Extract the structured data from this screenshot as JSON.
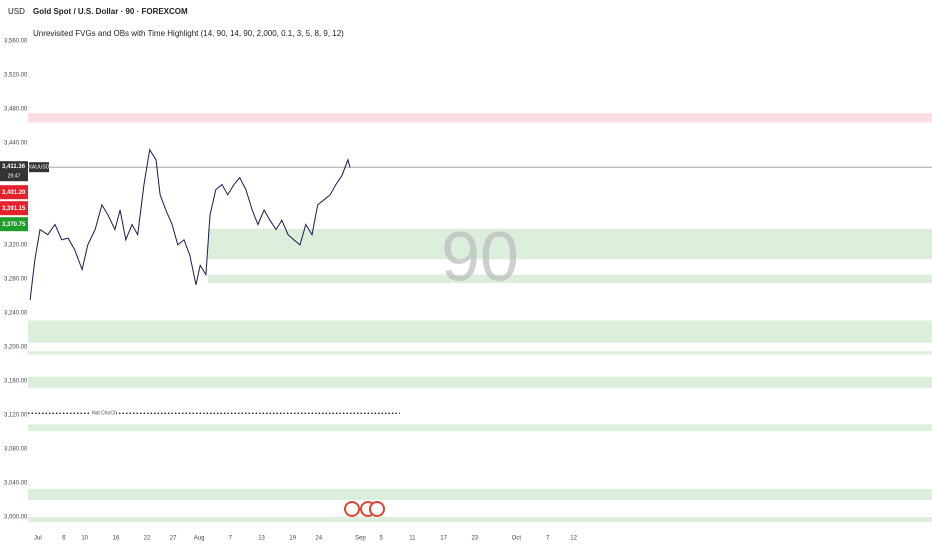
{
  "chart_data": {
    "type": "line",
    "currency": "USD",
    "title": "Gold Spot / U.S. Dollar · 90 · FOREXCOM",
    "subtitle": "Unrevisited FVGs and OBs with Time Highlight (14, 90, 14, 90, 2,000, 0.1, 3, 5, 8, 9, 12)",
    "watermark": "90",
    "x": [
      -1.5,
      -0.6,
      0.4,
      1.9,
      3.3,
      4.6,
      5.8,
      7.1,
      8.5,
      9.6,
      11,
      12.3,
      13.5,
      14.8,
      15.8,
      16.9,
      18.1,
      19.2,
      20.4,
      21.5,
      22.7,
      23.5,
      24.6,
      25.8,
      26.9,
      28.1,
      29.2,
      30.4,
      31.2,
      32.3,
      33.1,
      34.2,
      35.4,
      36.5,
      37.7,
      38.8,
      40,
      41.2,
      42.3,
      43.5,
      44.6,
      45.8,
      46.9,
      48.1,
      49.2,
      50.4,
      51.5,
      52.7,
      53.8,
      55,
      56.2,
      57.3,
      58.5,
      59.6,
      60
    ],
    "series": [
      {
        "name": "XAUUSD",
        "color": "#1a1a4e",
        "values": [
          3255,
          3302,
          3338,
          3332,
          3344,
          3326,
          3328,
          3314,
          3291,
          3320,
          3338,
          3367,
          3355,
          3338,
          3361,
          3326,
          3344,
          3332,
          3391,
          3432,
          3420,
          3379,
          3361,
          3344,
          3320,
          3326,
          3308,
          3273,
          3296,
          3285,
          3355,
          3385,
          3391,
          3379,
          3391,
          3399,
          3385,
          3361,
          3344,
          3361,
          3349,
          3338,
          3349,
          3332,
          3326,
          3320,
          3344,
          3332,
          3367,
          3373,
          3379,
          3391,
          3402,
          3420,
          3411
        ]
      }
    ],
    "xlim": [
      -1.9,
      171.9
    ],
    "ylim": [
      2987,
      3608
    ],
    "xticks": [
      {
        "value": 0,
        "label": "Jul"
      },
      {
        "value": 5,
        "label": "6"
      },
      {
        "value": 9,
        "label": "10"
      },
      {
        "value": 15,
        "label": "16"
      },
      {
        "value": 21,
        "label": "22"
      },
      {
        "value": 26,
        "label": "27"
      },
      {
        "value": 31,
        "label": "Aug"
      },
      {
        "value": 37,
        "label": "7"
      },
      {
        "value": 43,
        "label": "13"
      },
      {
        "value": 49,
        "label": "19"
      },
      {
        "value": 54,
        "label": "24"
      },
      {
        "value": 62,
        "label": "Sep"
      },
      {
        "value": 66,
        "label": "5"
      },
      {
        "value": 72,
        "label": "11"
      },
      {
        "value": 78,
        "label": "17"
      },
      {
        "value": 84,
        "label": "23"
      },
      {
        "value": 92,
        "label": "Oct"
      },
      {
        "value": 98,
        "label": "7"
      },
      {
        "value": 103,
        "label": "12"
      }
    ],
    "yticks": [
      {
        "value": 3560,
        "label": "3,560.00"
      },
      {
        "value": 3520,
        "label": "3,520.00"
      },
      {
        "value": 3480,
        "label": "3,480.00"
      },
      {
        "value": 3440,
        "label": "3,440.00"
      },
      {
        "value": 3320,
        "label": "3,320.00"
      },
      {
        "value": 3280,
        "label": "3,280.00"
      },
      {
        "value": 3240,
        "label": "3,240.00"
      },
      {
        "value": 3200,
        "label": "3,200.00"
      },
      {
        "value": 3160,
        "label": "3,160.00"
      },
      {
        "value": 3120,
        "label": "3,120.00"
      },
      {
        "value": 3080,
        "label": "3,080.00"
      },
      {
        "value": 3040,
        "label": "3,040.00"
      },
      {
        "value": 3000,
        "label": "3,000.00"
      }
    ],
    "zones": [
      {
        "from": 3464,
        "to": 3475,
        "color": "#fcdde2"
      },
      {
        "from": 3303,
        "to": 3339,
        "color": "#dcefdc",
        "start": 32.7
      },
      {
        "from": 3275,
        "to": 3285,
        "color": "#dcefdc",
        "start": 32.7
      },
      {
        "from": 3205,
        "to": 3231,
        "color": "#dcefdc"
      },
      {
        "from": 3191,
        "to": 3195,
        "color": "#dcefdc"
      },
      {
        "from": 3152,
        "to": 3165,
        "color": "#dcefdc"
      },
      {
        "from": 3101,
        "to": 3109,
        "color": "#dcefdc"
      },
      {
        "from": 3020,
        "to": 3033,
        "color": "#dcefdc"
      },
      {
        "from": 2994,
        "to": 3000,
        "color": "#dcefdc"
      }
    ],
    "levels": [
      {
        "value": 3122,
        "label": "Not ChoCh",
        "end": 69.6
      }
    ],
    "last_price": {
      "value": 3411.36,
      "label": "3,411.36",
      "countdown": "29:47"
    },
    "price_labels": [
      {
        "value": 3401.2,
        "label": "3,401.20",
        "color": "#e5222b"
      },
      {
        "value": 3391.15,
        "label": "3,391.15",
        "color": "#e5222b"
      },
      {
        "value": 3370.75,
        "label": "3,370.75",
        "color": "#1f9d2a"
      }
    ]
  }
}
